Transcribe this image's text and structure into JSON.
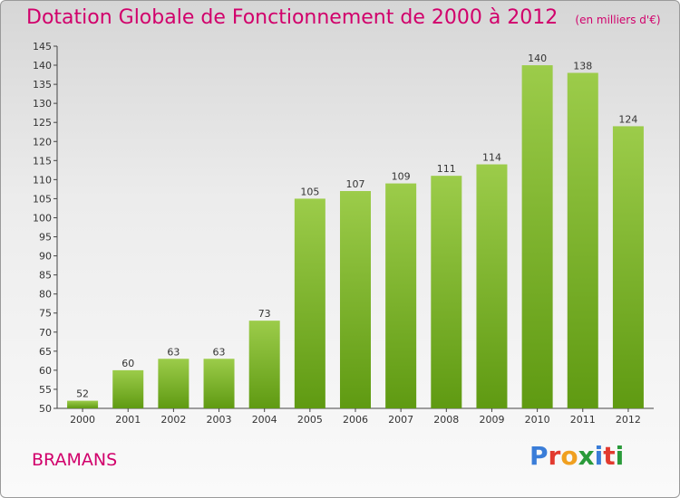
{
  "chart_data": {
    "type": "bar",
    "title": "Dotation Globale de Fonctionnement de 2000 à 2012",
    "subtitle": "(en milliers d'€)",
    "categories": [
      "2000",
      "2001",
      "2002",
      "2003",
      "2004",
      "2005",
      "2006",
      "2007",
      "2008",
      "2009",
      "2010",
      "2011",
      "2012"
    ],
    "values": [
      52,
      60,
      63,
      63,
      73,
      105,
      107,
      109,
      111,
      114,
      140,
      138,
      124
    ],
    "ylim": [
      50,
      145
    ],
    "yticks": [
      50,
      55,
      60,
      65,
      70,
      75,
      80,
      85,
      90,
      95,
      100,
      105,
      110,
      115,
      120,
      125,
      130,
      135,
      140,
      145
    ],
    "grid": false,
    "colors": {
      "bar_top": "#9ccc4a",
      "bar_bottom": "#5f9a12",
      "title": "#d1006b"
    }
  },
  "commune": "BRAMANS",
  "brand": {
    "letters": [
      "P",
      "r",
      "o",
      "x",
      "i",
      "t",
      "i"
    ],
    "colors": [
      "#3a7dd8",
      "#e23a2f",
      "#f0a020",
      "#2a9a3a",
      "#3a7dd8",
      "#e23a2f",
      "#2a9a3a"
    ]
  }
}
